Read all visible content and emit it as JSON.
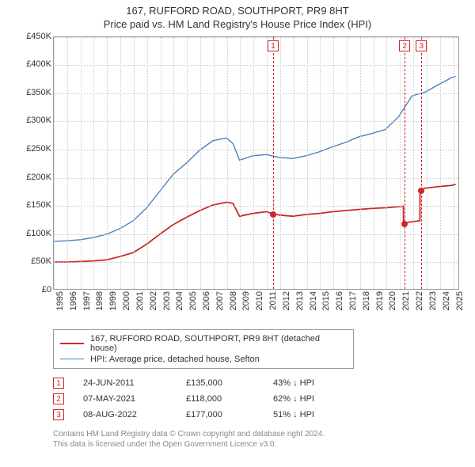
{
  "title": "167, RUFFORD ROAD, SOUTHPORT, PR9 8HT",
  "subtitle": "Price paid vs. HM Land Registry's House Price Index (HPI)",
  "chart": {
    "type": "line",
    "background_color": "#ffffff",
    "grid_color": "#cccccc",
    "border_color": "#999999",
    "xlim": [
      1995,
      2025.5
    ],
    "ylim": [
      0,
      450000
    ],
    "ytick_step": 50000,
    "yticks": [
      "£0",
      "£50K",
      "£100K",
      "£150K",
      "£200K",
      "£250K",
      "£300K",
      "£350K",
      "£400K",
      "£450K"
    ],
    "xticks": [
      "1995",
      "1996",
      "1997",
      "1998",
      "1999",
      "2000",
      "2001",
      "2002",
      "2003",
      "2004",
      "2005",
      "2006",
      "2007",
      "2008",
      "2009",
      "2010",
      "2011",
      "2012",
      "2013",
      "2014",
      "2015",
      "2016",
      "2017",
      "2018",
      "2019",
      "2020",
      "2021",
      "2022",
      "2023",
      "2024",
      "2025"
    ],
    "label_fontsize": 11,
    "title_fontsize": 13,
    "series": {
      "property": {
        "label": "167, RUFFORD ROAD, SOUTHPORT, PR9 8HT (detached house)",
        "color": "#cd2626",
        "line_width": 1.8,
        "x": [
          1995,
          1996,
          1997,
          1998,
          1999,
          2000,
          2001,
          2002,
          2003,
          2004,
          2005,
          2006,
          2007,
          2008,
          2008.5,
          2009,
          2010,
          2011,
          2011.47,
          2012,
          2013,
          2014,
          2015,
          2016,
          2017,
          2018,
          2019,
          2020,
          2021,
          2021.35,
          2021.36,
          2022,
          2022.6,
          2022.61,
          2023,
          2024,
          2025,
          2025.3
        ],
        "y": [
          48000,
          48000,
          49000,
          50000,
          52000,
          58000,
          65000,
          80000,
          98000,
          115000,
          128000,
          140000,
          150000,
          155000,
          153000,
          130000,
          135000,
          138000,
          135000,
          132000,
          130000,
          133000,
          135000,
          138000,
          140000,
          142000,
          144000,
          145000,
          147000,
          148000,
          118000,
          120000,
          122000,
          177000,
          180000,
          183000,
          185000,
          187000
        ]
      },
      "hpi": {
        "label": "HPI: Average price, detached house, Sefton",
        "color": "#4a7fbf",
        "line_width": 1.4,
        "x": [
          1995,
          1996,
          1997,
          1998,
          1999,
          2000,
          2001,
          2002,
          2003,
          2004,
          2005,
          2006,
          2007,
          2008,
          2008.5,
          2009,
          2010,
          2011,
          2012,
          2013,
          2014,
          2015,
          2016,
          2017,
          2018,
          2019,
          2020,
          2021,
          2022,
          2023,
          2024,
          2025,
          2025.3
        ],
        "y": [
          85000,
          86000,
          88000,
          92000,
          98000,
          108000,
          122000,
          145000,
          175000,
          205000,
          225000,
          248000,
          265000,
          270000,
          260000,
          230000,
          238000,
          240000,
          235000,
          233000,
          238000,
          245000,
          254000,
          262000,
          272000,
          278000,
          285000,
          308000,
          345000,
          352000,
          365000,
          378000,
          380000
        ]
      }
    },
    "sale_markers": [
      {
        "n": "1",
        "x": 2011.47,
        "y": 135000,
        "date": "24-JUN-2011",
        "price": "£135,000",
        "diff": "43% ↓ HPI"
      },
      {
        "n": "2",
        "x": 2021.35,
        "y": 118000,
        "date": "07-MAY-2021",
        "price": "£118,000",
        "diff": "62% ↓ HPI"
      },
      {
        "n": "3",
        "x": 2022.6,
        "y": 177000,
        "date": "08-AUG-2022",
        "price": "£177,000",
        "diff": "51% ↓ HPI"
      }
    ],
    "sale_line_color": "#cd2626",
    "marker_box_border": "#cd2626",
    "point_fill": "#cd2626"
  },
  "footer": {
    "line1": "Contains HM Land Registry data © Crown copyright and database right 2024.",
    "line2": "This data is licensed under the Open Government Licence v3.0."
  },
  "colors": {
    "text": "#333333",
    "footer_text": "#888888"
  }
}
